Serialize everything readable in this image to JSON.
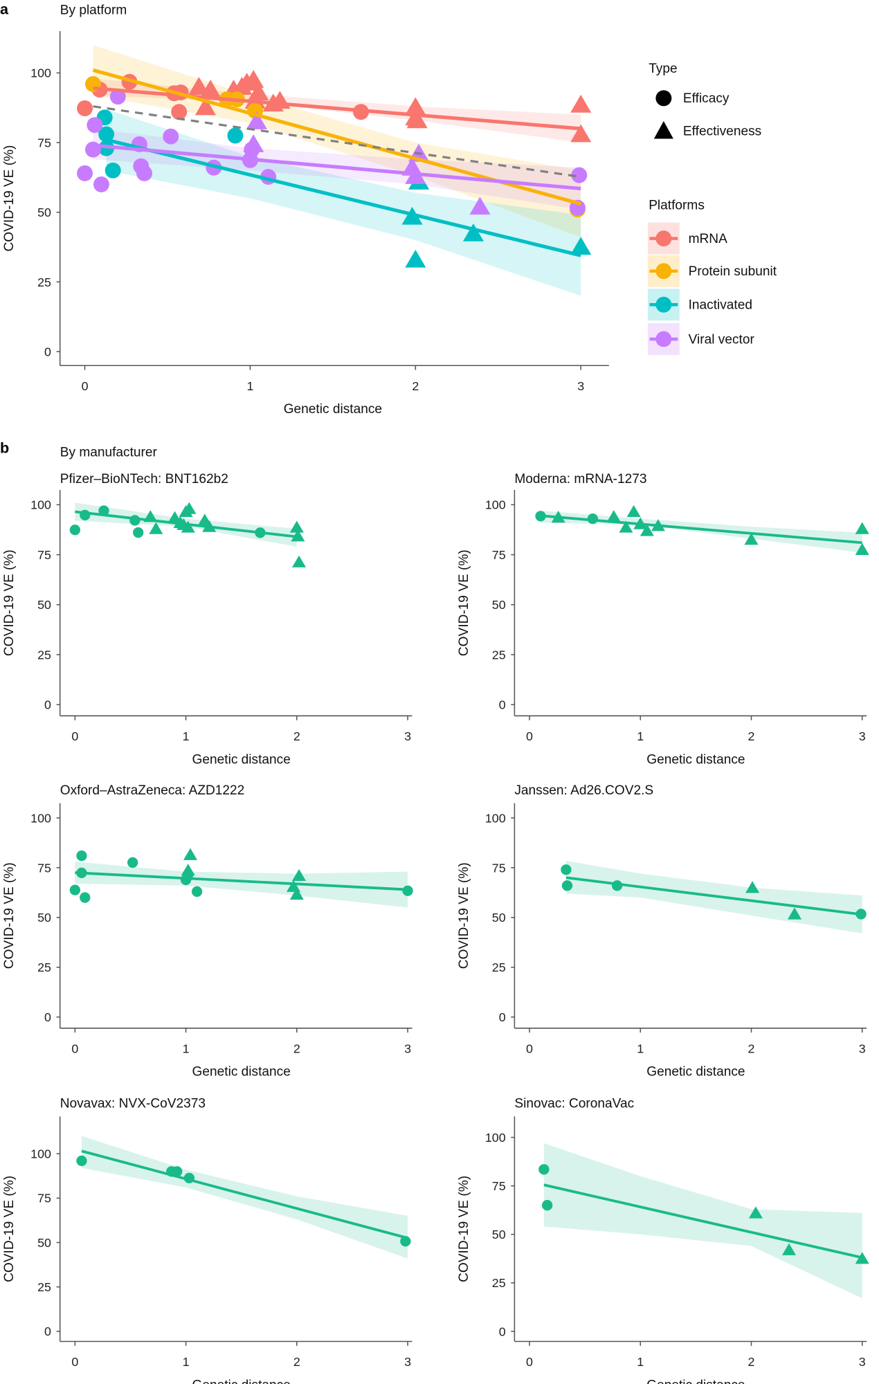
{
  "panel_a": {
    "letter": "a",
    "subtitle": "By platform"
  },
  "panel_b": {
    "letter": "b",
    "subtitle": "By manufacturer"
  },
  "legend": {
    "type_title": "Type",
    "types": [
      {
        "label": "Efficacy",
        "shape": "circle"
      },
      {
        "label": "Effectiveness",
        "shape": "triangle"
      }
    ],
    "platform_title": "Platforms",
    "platforms": [
      {
        "label": "mRNA",
        "color": "#F8766D"
      },
      {
        "label": "Protein subunit",
        "color": "#F9B208"
      },
      {
        "label": "Inactivated",
        "color": "#00BFC4"
      },
      {
        "label": "Viral vector",
        "color": "#C77CFF"
      }
    ]
  },
  "chart_data": [
    {
      "type": "scatter",
      "title": "",
      "xlabel": "Genetic distance",
      "ylabel": "COVID-19 VE (%)",
      "xlim": [
        -0.15,
        3.17
      ],
      "ylim": [
        -5,
        115
      ],
      "xticks": [
        0,
        1,
        2,
        3
      ],
      "yticks": [
        0,
        25,
        50,
        75,
        100
      ],
      "overall_fit": {
        "color": "#808080",
        "style": "dashed",
        "line": [
          [
            0.05,
            88
          ],
          [
            3.0,
            62.7
          ]
        ]
      },
      "series": [
        {
          "name": "mRNA",
          "color": "#F8766D",
          "efficacy": [
            [
              0,
              87.3
            ],
            [
              0.09,
              94
            ],
            [
              0.27,
              96.8
            ],
            [
              0.54,
              92.7
            ],
            [
              0.57,
              86
            ],
            [
              0.58,
              93
            ],
            [
              1.67,
              86
            ]
          ],
          "effectiveness": [
            [
              0.69,
              95
            ],
            [
              0.73,
              87.7
            ],
            [
              0.76,
              94
            ],
            [
              0.9,
              94
            ],
            [
              0.95,
              95
            ],
            [
              0.98,
              96.5
            ],
            [
              1.02,
              97.5
            ],
            [
              1.03,
              90
            ],
            [
              1.05,
              93
            ],
            [
              1.18,
              90
            ],
            [
              1.14,
              89
            ],
            [
              2.0,
              87.7
            ],
            [
              2.0,
              84
            ],
            [
              2.01,
              83
            ],
            [
              3.0,
              88.6
            ],
            [
              3.0,
              78
            ]
          ],
          "fit": [
            [
              0.05,
              94.5
            ],
            [
              3.0,
              80
            ]
          ],
          "band": [
            [
              0.05,
              92,
              98
            ],
            [
              1,
              89.5,
              92.5
            ],
            [
              2,
              83,
              88
            ],
            [
              3,
              75,
              85
            ]
          ]
        },
        {
          "name": "Protein subunit",
          "color": "#F9B208",
          "efficacy": [
            [
              0.05,
              96
            ],
            [
              0.86,
              90.5
            ],
            [
              0.92,
              90.5
            ],
            [
              1.03,
              86.4
            ],
            [
              2.98,
              51
            ]
          ],
          "effectiveness": [],
          "fit": [
            [
              0.05,
              101
            ],
            [
              3.0,
              53
            ]
          ],
          "band": [
            [
              0.05,
              92,
              110
            ],
            [
              1,
              82,
              92
            ],
            [
              2,
              63,
              75
            ],
            [
              3,
              41,
              65
            ]
          ]
        },
        {
          "name": "Inactivated",
          "color": "#00BFC4",
          "efficacy": [
            [
              0.12,
              84
            ],
            [
              0.13,
              78
            ],
            [
              0.13,
              73
            ],
            [
              0.17,
              65
            ],
            [
              0.91,
              77.5
            ]
          ],
          "effectiveness": [
            [
              2.02,
              61
            ],
            [
              1.98,
              48.4
            ],
            [
              2.0,
              33
            ],
            [
              2.35,
              42.4
            ],
            [
              3.0,
              37.6
            ]
          ],
          "fit": [
            [
              0.13,
              76
            ],
            [
              3.0,
              34.5
            ]
          ],
          "band": [
            [
              0.13,
              65,
              87
            ],
            [
              1,
              55,
              70
            ],
            [
              2,
              40,
              57
            ],
            [
              3,
              20,
              49
            ]
          ]
        },
        {
          "name": "Viral vector",
          "color": "#C77CFF",
          "efficacy": [
            [
              0,
              64
            ],
            [
              0.05,
              72.5
            ],
            [
              0.06,
              81.3
            ],
            [
              0.1,
              60
            ],
            [
              0.2,
              91.5
            ],
            [
              0.33,
              74.4
            ],
            [
              0.34,
              66.5
            ],
            [
              0.36,
              64
            ],
            [
              0.52,
              77.2
            ],
            [
              0.78,
              66
            ],
            [
              1.0,
              68.7
            ],
            [
              1.01,
              72.5
            ],
            [
              1.11,
              62.7
            ],
            [
              2.99,
              63.3
            ],
            [
              2.98,
              51.6
            ]
          ],
          "effectiveness": [
            [
              1.04,
              82.6
            ],
            [
              1.02,
              74.4
            ],
            [
              1.98,
              66
            ],
            [
              2.02,
              71
            ],
            [
              2.0,
              63
            ],
            [
              2.39,
              52
            ]
          ],
          "fit": [
            [
              0.05,
              74
            ],
            [
              3.0,
              58.5
            ]
          ],
          "band": [
            [
              0.05,
              69,
              80
            ],
            [
              1,
              65,
              73
            ],
            [
              2,
              60,
              69
            ],
            [
              3,
              51,
              66
            ]
          ]
        }
      ]
    },
    {
      "type": "scatter",
      "title": "Pfizer–BioNTech: BNT162b2",
      "xlabel": "Genetic distance",
      "ylabel": "COVID-19 VE (%)",
      "xlim": [
        -0.135,
        3.04
      ],
      "ylim": [
        -5.6,
        107.4
      ],
      "xticks": [
        0,
        1,
        2,
        3
      ],
      "yticks": [
        0,
        25,
        50,
        75,
        100
      ],
      "series": [
        {
          "color": "#19BA8A",
          "efficacy": [
            [
              0,
              87.4
            ],
            [
              0.09,
              94.8
            ],
            [
              0.26,
              97
            ],
            [
              0.54,
              92.2
            ],
            [
              0.57,
              86.1
            ],
            [
              1.67,
              86
            ]
          ],
          "effectiveness": [
            [
              0.68,
              94
            ],
            [
              0.73,
              88
            ],
            [
              0.9,
              93.5
            ],
            [
              0.95,
              91
            ],
            [
              1.0,
              96.5
            ],
            [
              1.03,
              98
            ],
            [
              1.02,
              88.7
            ],
            [
              0.98,
              90
            ],
            [
              1.17,
              92.2
            ],
            [
              1.21,
              89
            ],
            [
              2.0,
              88.7
            ],
            [
              2.01,
              84.3
            ],
            [
              2.02,
              71.3
            ]
          ],
          "fit": [
            [
              0,
              96.5
            ],
            [
              2.0,
              84
            ]
          ],
          "band": [
            [
              0,
              92,
              101
            ],
            [
              1,
              89,
              93
            ],
            [
              2,
              79,
              88
            ]
          ]
        }
      ]
    },
    {
      "type": "scatter",
      "title": "Moderna: mRNA-1273",
      "xlabel": "Genetic distance",
      "ylabel": "COVID-19 VE (%)",
      "xlim": [
        -0.135,
        3.04
      ],
      "ylim": [
        -5.6,
        107.4
      ],
      "xticks": [
        0,
        1,
        2,
        3
      ],
      "yticks": [
        0,
        25,
        50,
        75,
        100
      ],
      "series": [
        {
          "color": "#19BA8A",
          "efficacy": [
            [
              0.1,
              94.3
            ],
            [
              0.57,
              93
            ]
          ],
          "effectiveness": [
            [
              0.26,
              93.7
            ],
            [
              0.76,
              94
            ],
            [
              0.94,
              96.5
            ],
            [
              0.87,
              88.7
            ],
            [
              1.0,
              90.4
            ],
            [
              1.06,
              87
            ],
            [
              1.16,
              89.5
            ],
            [
              2.0,
              82.6
            ],
            [
              3.0,
              88
            ],
            [
              3.0,
              77.5
            ]
          ],
          "fit": [
            [
              0.1,
              94.5
            ],
            [
              3.0,
              81
            ]
          ],
          "band": [
            [
              0.1,
              91,
              97
            ],
            [
              1,
              90,
              93
            ],
            [
              2,
              83,
              89
            ],
            [
              3,
              76,
              86
            ]
          ]
        }
      ]
    },
    {
      "type": "scatter",
      "title": "Oxford–AstraZeneca: AZD1222",
      "xlabel": "Genetic distance",
      "ylabel": "COVID-19 VE (%)",
      "xlim": [
        -0.135,
        3.04
      ],
      "ylim": [
        -5.6,
        107.4
      ],
      "xticks": [
        0,
        1,
        2,
        3
      ],
      "yticks": [
        0,
        25,
        50,
        75,
        100
      ],
      "series": [
        {
          "color": "#19BA8A",
          "efficacy": [
            [
              0,
              63.8
            ],
            [
              0.06,
              72.4
            ],
            [
              0.06,
              81
            ],
            [
              0.09,
              60
            ],
            [
              0.52,
              77.6
            ],
            [
              1.0,
              68.9
            ],
            [
              1.02,
              71.5
            ],
            [
              1.1,
              63
            ],
            [
              3.0,
              63.4
            ]
          ],
          "effectiveness": [
            [
              1.04,
              81.5
            ],
            [
              1.02,
              73.7
            ],
            [
              1.97,
              65.5
            ],
            [
              2.02,
              71
            ],
            [
              2.0,
              61.6
            ]
          ],
          "fit": [
            [
              0,
              72.5
            ],
            [
              3.0,
              64
            ]
          ],
          "band": [
            [
              0,
              67,
              78
            ],
            [
              1,
              66,
              73
            ],
            [
              2,
              61,
              72
            ],
            [
              3,
              55,
              73
            ]
          ]
        }
      ]
    },
    {
      "type": "scatter",
      "title": "Janssen: Ad26.COV2.S",
      "xlabel": "Genetic distance",
      "ylabel": "COVID-19 VE (%)",
      "xlim": [
        -0.135,
        3.04
      ],
      "ylim": [
        -5.6,
        107.4
      ],
      "xticks": [
        0,
        1,
        2,
        3
      ],
      "yticks": [
        0,
        25,
        50,
        75,
        100
      ],
      "series": [
        {
          "color": "#19BA8A",
          "efficacy": [
            [
              0.33,
              74
            ],
            [
              0.34,
              66
            ],
            [
              0.79,
              66
            ],
            [
              2.99,
              51.7
            ]
          ],
          "effectiveness": [
            [
              2.01,
              65
            ],
            [
              2.39,
              51.7
            ]
          ],
          "fit": [
            [
              0.33,
              70
            ],
            [
              3.0,
              51.5
            ]
          ],
          "band": [
            [
              0.33,
              62,
              78.5
            ],
            [
              1,
              60,
              72
            ],
            [
              2,
              51,
              65
            ],
            [
              3,
              42,
              61
            ]
          ]
        }
      ]
    },
    {
      "type": "scatter",
      "title": "Novavax: NVX-CoV2373",
      "xlabel": "Genetic distance",
      "ylabel": "COVID-19 VE (%)",
      "xlim": [
        -0.135,
        3.04
      ],
      "ylim": [
        -5.7,
        121
      ],
      "xticks": [
        0,
        1,
        2,
        3
      ],
      "yticks": [
        0,
        25,
        50,
        75,
        100
      ],
      "series": [
        {
          "color": "#19BA8A",
          "efficacy": [
            [
              0.06,
              96
            ],
            [
              0.87,
              90
            ],
            [
              0.92,
              90
            ],
            [
              1.03,
              86.3
            ],
            [
              2.98,
              50.7
            ]
          ],
          "effectiveness": [],
          "fit": [
            [
              0.06,
              101.5
            ],
            [
              3.0,
              52.5
            ]
          ],
          "band": [
            [
              0.06,
              92,
              110
            ],
            [
              1,
              81,
              91
            ],
            [
              2,
              63,
              76
            ],
            [
              3,
              41,
              65
            ]
          ]
        }
      ]
    },
    {
      "type": "scatter",
      "title": "Sinovac: CoronaVac",
      "xlabel": "Genetic distance",
      "ylabel": "COVID-19 VE (%)",
      "xlim": [
        -0.135,
        3.04
      ],
      "ylim": [
        -5.2,
        110.8
      ],
      "xticks": [
        0,
        1,
        2,
        3
      ],
      "yticks": [
        0,
        25,
        50,
        75,
        100
      ],
      "series": [
        {
          "color": "#19BA8A",
          "efficacy": [
            [
              0.13,
              83.5
            ],
            [
              0.16,
              65
            ]
          ],
          "effectiveness": [
            [
              2.04,
              61
            ],
            [
              2.34,
              42
            ],
            [
              3.0,
              37.5
            ]
          ],
          "fit": [
            [
              0.13,
              75.5
            ],
            [
              3.0,
              38
            ]
          ],
          "band": [
            [
              0.13,
              54,
              97
            ],
            [
              1,
              50,
              80
            ],
            [
              2,
              44,
              63
            ],
            [
              3,
              17,
              61
            ]
          ]
        }
      ]
    }
  ]
}
